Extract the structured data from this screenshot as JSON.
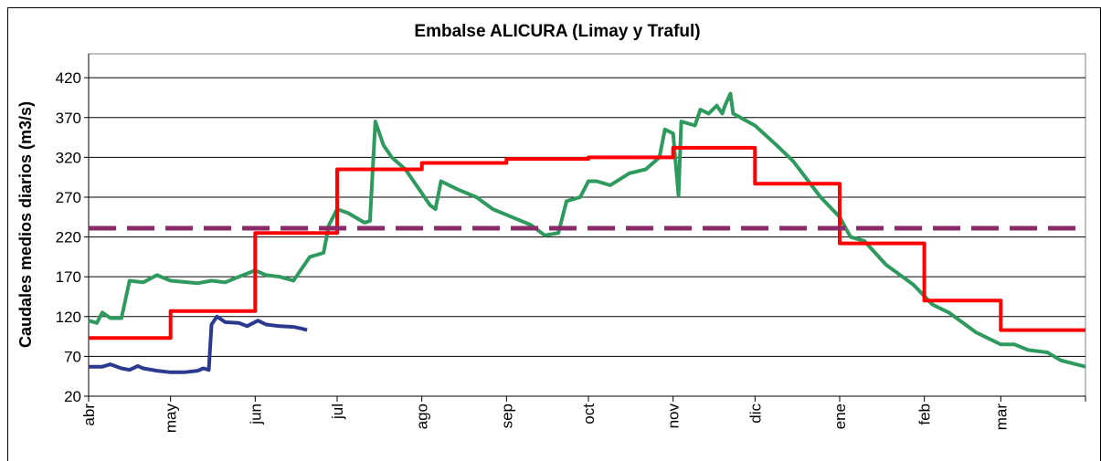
{
  "chart_data": {
    "type": "line",
    "title": "Embalse ALICURA (Limay y Traful)",
    "y_label": "Caudales medios diarios (m3/s)",
    "xlim": [
      0,
      365
    ],
    "xticks": [
      {
        "value": 0,
        "label": "abr"
      },
      {
        "value": 30,
        "label": "may"
      },
      {
        "value": 61,
        "label": "jun"
      },
      {
        "value": 91,
        "label": "jul"
      },
      {
        "value": 122,
        "label": "ago"
      },
      {
        "value": 153,
        "label": "sep"
      },
      {
        "value": 183,
        "label": "oct"
      },
      {
        "value": 214,
        "label": "nov"
      },
      {
        "value": 244,
        "label": "dic"
      },
      {
        "value": 275,
        "label": "ene"
      },
      {
        "value": 306,
        "label": "feb"
      },
      {
        "value": 334,
        "label": "mar"
      },
      {
        "value": 365,
        "label": ""
      }
    ],
    "ylim": [
      20,
      450
    ],
    "yticks": [
      20,
      70,
      120,
      170,
      220,
      270,
      320,
      370,
      420
    ],
    "grid": true,
    "series": [
      {
        "color": "#2e9a5e",
        "x": [
          0,
          3,
          5,
          8,
          12,
          15,
          20,
          25,
          30,
          40,
          45,
          50,
          55,
          61,
          65,
          70,
          75,
          81,
          86,
          88,
          91,
          95,
          101,
          103,
          105,
          108,
          111,
          116,
          122,
          125,
          127,
          129,
          135,
          142,
          148,
          155,
          162,
          167,
          172,
          175,
          180,
          183,
          186,
          191,
          198,
          204,
          209,
          211,
          214,
          216,
          217,
          222,
          224,
          227,
          230,
          232,
          233,
          235,
          236,
          244,
          252,
          258,
          268,
          275,
          279,
          284,
          292,
          302,
          309,
          315,
          325,
          334,
          339,
          344,
          351,
          356,
          365
        ],
        "values": [
          115,
          112,
          125,
          118,
          118,
          165,
          163,
          172,
          165,
          162,
          165,
          163,
          170,
          178,
          172,
          170,
          165,
          195,
          200,
          235,
          255,
          250,
          238,
          240,
          365,
          335,
          320,
          305,
          275,
          260,
          255,
          290,
          280,
          270,
          255,
          245,
          235,
          222,
          225,
          265,
          270,
          290,
          290,
          285,
          300,
          305,
          320,
          355,
          350,
          272,
          365,
          360,
          380,
          375,
          385,
          375,
          385,
          400,
          375,
          360,
          335,
          315,
          270,
          245,
          220,
          215,
          185,
          160,
          135,
          125,
          100,
          85,
          85,
          78,
          75,
          65,
          57
        ]
      },
      {
        "color": "#2b3a8f",
        "x": [
          0,
          5,
          8,
          12,
          15,
          18,
          20,
          25,
          30,
          35,
          40,
          42,
          44,
          45,
          47,
          50,
          55,
          58,
          62,
          65,
          70,
          75,
          78,
          80
        ],
        "values": [
          57,
          57,
          60,
          55,
          53,
          58,
          55,
          52,
          50,
          50,
          52,
          55,
          53,
          110,
          120,
          113,
          112,
          108,
          115,
          110,
          108,
          107,
          105,
          103
        ]
      },
      {
        "color": "#ff0000",
        "x": [
          0,
          30,
          30,
          61,
          61,
          91,
          91,
          122,
          122,
          153,
          153,
          183,
          183,
          214,
          214,
          244,
          244,
          275,
          275,
          306,
          306,
          334,
          334,
          365
        ],
        "values": [
          93,
          93,
          127,
          127,
          225,
          225,
          305,
          305,
          313,
          313,
          318,
          318,
          320,
          320,
          332,
          332,
          287,
          287,
          212,
          212,
          140,
          140,
          103,
          103
        ]
      },
      {
        "color": "#8b2a6b",
        "dash": true,
        "x": [
          0,
          365
        ],
        "values": [
          231,
          231
        ]
      }
    ]
  }
}
